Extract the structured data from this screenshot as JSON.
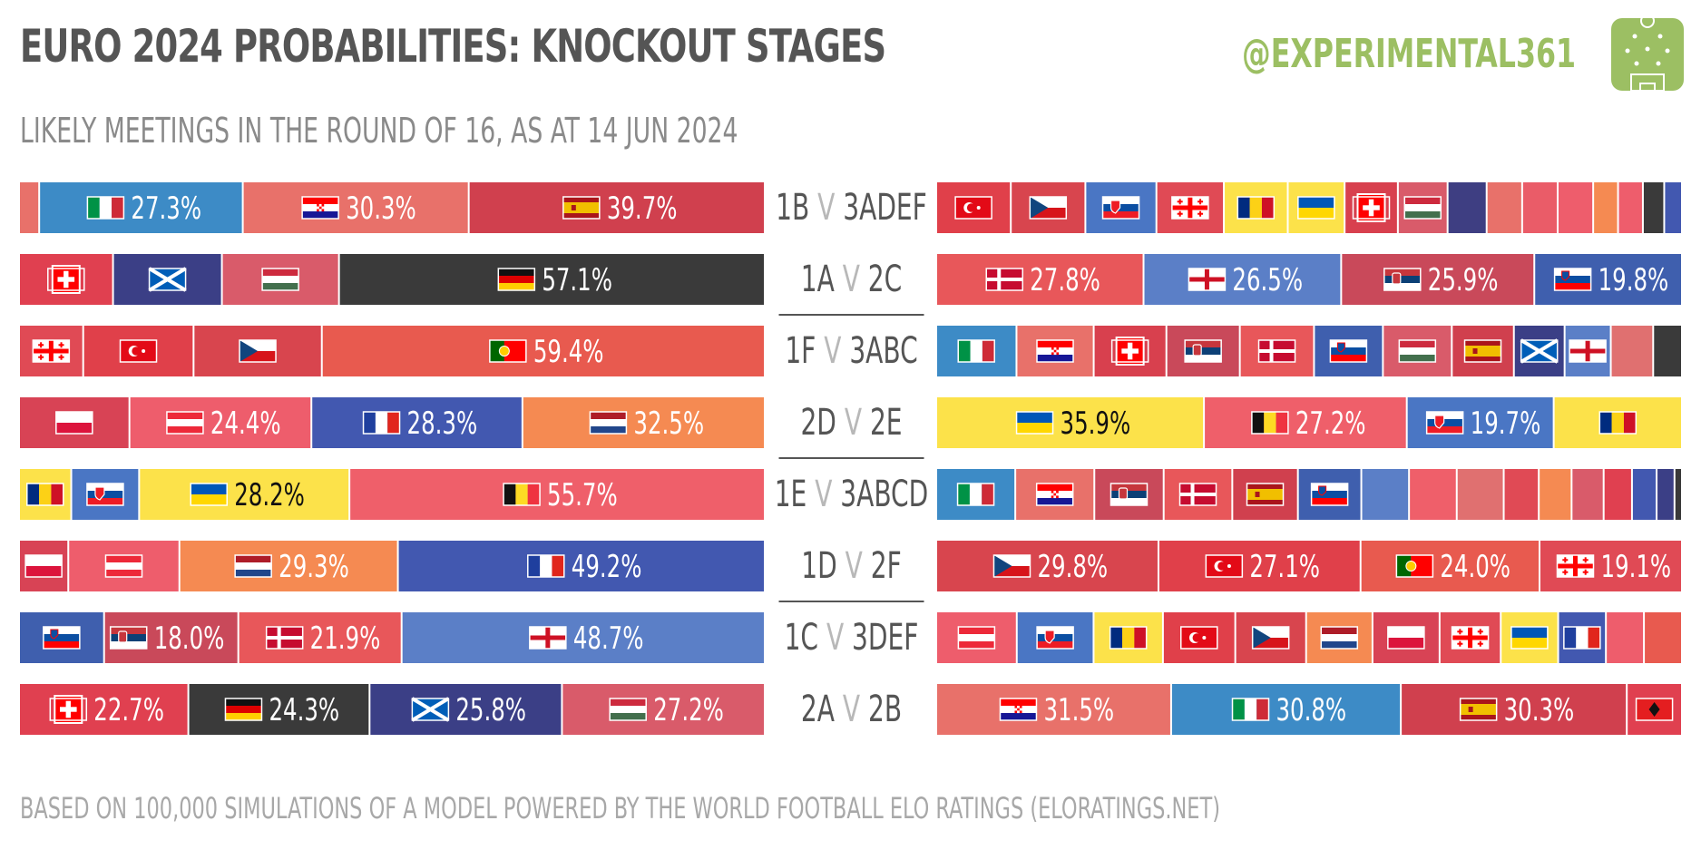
{
  "title": "EURO 2024 PROBABILITIES: KNOCKOUT STAGES",
  "subtitle": "LIKELY MEETINGS IN THE ROUND OF 16, AS AT 14 JUN 2024",
  "brand": "@EXPERIMENTAL361",
  "footer": "BASED ON 100,000 SIMULATIONS OF A MODEL POWERED BY THE WORLD FOOTBALL ELO RATINGS  (ELORATINGS.NET)",
  "colors": {
    "title": "#555555",
    "subtitle": "#8a8a8a",
    "brand": "#9cbf63",
    "versus": "#b8b8b8",
    "match_label": "#555555",
    "footer": "#a8a8a8"
  },
  "chart_data": {
    "type": "stacked-bar",
    "title": "EURO 2024 PROBABILITIES: KNOCKOUT STAGES",
    "unit": "% probability of team occupying that slot",
    "rows": [
      {
        "match": {
          "a": "1B",
          "v": "V",
          "b": "3ADEF"
        },
        "left": [
          {
            "team": "Other",
            "value": 2.7,
            "color": "#e8716a"
          },
          {
            "team": "Italy",
            "value": 27.3,
            "color": "#3d8bc6",
            "label": "27.3%"
          },
          {
            "team": "Croatia",
            "value": 30.3,
            "color": "#e8716a",
            "label": "30.3%"
          },
          {
            "team": "Spain",
            "value": 39.7,
            "color": "#d0404e",
            "label": "39.7%"
          }
        ],
        "right": [
          {
            "team": "Türkiye",
            "value": 10.5,
            "color": "#e0404a"
          },
          {
            "team": "Czechia",
            "value": 10.5,
            "color": "#d8454e"
          },
          {
            "team": "Slovakia",
            "value": 10.0,
            "color": "#4a76c4"
          },
          {
            "team": "Georgia",
            "value": 9.5,
            "color": "#e04a55"
          },
          {
            "team": "Romania",
            "value": 9.0,
            "color": "#fce24a"
          },
          {
            "team": "Ukraine",
            "value": 8.0,
            "color": "#fce24a"
          },
          {
            "team": "Switzerland",
            "value": 7.5,
            "color": "#d8404e"
          },
          {
            "team": "Hungary",
            "value": 7.0,
            "color": "#d95b6a"
          },
          {
            "team": "Other",
            "value": 5.5,
            "color": "#3e3e82"
          },
          {
            "team": "Other",
            "value": 5.0,
            "color": "#e8716a"
          },
          {
            "team": "Other",
            "value": 5.0,
            "color": "#ea5c68"
          },
          {
            "team": "Other",
            "value": 5.0,
            "color": "#ee5d6c"
          },
          {
            "team": "Other",
            "value": 3.5,
            "color": "#f58a52"
          },
          {
            "team": "Other",
            "value": 3.5,
            "color": "#ee5d6c"
          },
          {
            "team": "Other",
            "value": 3.0,
            "color": "#3a3a3a"
          },
          {
            "team": "Other",
            "value": 2.5,
            "color": "#4258b0"
          }
        ]
      },
      {
        "match": {
          "a": "1A",
          "v": "V",
          "b": "2C"
        },
        "left": [
          {
            "team": "Switzerland",
            "value": 12.6,
            "color": "#e04050"
          },
          {
            "team": "Scotland",
            "value": 14.6,
            "color": "#3b3f86"
          },
          {
            "team": "Hungary",
            "value": 15.7,
            "color": "#d95b6a"
          },
          {
            "team": "Germany",
            "value": 57.1,
            "color": "#3a3a3a",
            "label": "57.1%"
          }
        ],
        "right": [
          {
            "team": "Denmark",
            "value": 27.8,
            "color": "#e8575a",
            "label": "27.8%"
          },
          {
            "team": "England",
            "value": 26.5,
            "color": "#5b7fc7",
            "label": "26.5%"
          },
          {
            "team": "Serbia",
            "value": 25.9,
            "color": "#c9495a",
            "label": "25.9%"
          },
          {
            "team": "Slovenia",
            "value": 19.8,
            "color": "#3f5fae",
            "label": "19.8%"
          }
        ]
      },
      {
        "match": {
          "a": "1F",
          "v": "V",
          "b": "3ABC"
        },
        "left": [
          {
            "team": "Georgia",
            "value": 8.6,
            "color": "#e04a55"
          },
          {
            "team": "Türkiye",
            "value": 14.8,
            "color": "#e0404a"
          },
          {
            "team": "Czechia",
            "value": 17.2,
            "color": "#d8454e"
          },
          {
            "team": "Portugal",
            "value": 59.4,
            "color": "#e85a4f",
            "label": "59.4%"
          }
        ],
        "right": [
          {
            "team": "Italy",
            "value": 10.6,
            "color": "#3d8bc6"
          },
          {
            "team": "Croatia",
            "value": 10.2,
            "color": "#e8716a"
          },
          {
            "team": "Switzerland",
            "value": 9.6,
            "color": "#d8404e"
          },
          {
            "team": "Serbia",
            "value": 9.7,
            "color": "#c9495a"
          },
          {
            "team": "Denmark",
            "value": 9.8,
            "color": "#e8575a"
          },
          {
            "team": "Slovenia",
            "value": 9.1,
            "color": "#3f5fae"
          },
          {
            "team": "Hungary",
            "value": 9.1,
            "color": "#d95b6a"
          },
          {
            "team": "Spain",
            "value": 8.2,
            "color": "#d0404e"
          },
          {
            "team": "Scotland",
            "value": 6.7,
            "color": "#3b3f86"
          },
          {
            "team": "England",
            "value": 6.1,
            "color": "#5b7fc7"
          },
          {
            "team": "Other",
            "value": 5.6,
            "color": "#e07070"
          },
          {
            "team": "Other",
            "value": 3.8,
            "color": "#3a3a3a"
          }
        ]
      },
      {
        "match": {
          "a": "2D",
          "v": "V",
          "b": "2E"
        },
        "left": [
          {
            "team": "Poland",
            "value": 14.8,
            "color": "#d84355"
          },
          {
            "team": "Austria",
            "value": 24.4,
            "color": "#ee5d6c",
            "label": "24.4%"
          },
          {
            "team": "France",
            "value": 28.3,
            "color": "#4258b0",
            "label": "28.3%"
          },
          {
            "team": "Netherlands",
            "value": 32.5,
            "color": "#f58a52",
            "label": "32.5%"
          }
        ],
        "right": [
          {
            "team": "Ukraine",
            "value": 35.9,
            "color": "#fce24a",
            "label": "35.9%"
          },
          {
            "team": "Belgium",
            "value": 27.2,
            "color": "#ef5f6a",
            "label": "27.2%"
          },
          {
            "team": "Slovakia",
            "value": 19.7,
            "color": "#4a76c4",
            "label": "19.7%"
          },
          {
            "team": "Romania",
            "value": 17.2,
            "color": "#fce24a"
          }
        ]
      },
      {
        "match": {
          "a": "1E",
          "v": "V",
          "b": "3ABCD"
        },
        "left": [
          {
            "team": "Romania",
            "value": 7.0,
            "color": "#fce24a"
          },
          {
            "team": "Slovakia",
            "value": 9.1,
            "color": "#4a76c4"
          },
          {
            "team": "Ukraine",
            "value": 28.2,
            "color": "#fce24a",
            "label": "28.2%"
          },
          {
            "team": "Belgium",
            "value": 55.7,
            "color": "#ef5f6a",
            "label": "55.7%"
          }
        ],
        "right": [
          {
            "team": "Italy",
            "value": 10.6,
            "color": "#3d8bc6"
          },
          {
            "team": "Croatia",
            "value": 10.6,
            "color": "#e8716a"
          },
          {
            "team": "Serbia",
            "value": 9.3,
            "color": "#c9495a"
          },
          {
            "team": "Denmark",
            "value": 9.2,
            "color": "#e8575a"
          },
          {
            "team": "Spain",
            "value": 8.8,
            "color": "#d0404e"
          },
          {
            "team": "Slovenia",
            "value": 8.5,
            "color": "#3f5fae"
          },
          {
            "team": "Other",
            "value": 6.4,
            "color": "#5b7fc7"
          },
          {
            "team": "Other",
            "value": 6.4,
            "color": "#ef5f6a"
          },
          {
            "team": "Other",
            "value": 6.3,
            "color": "#e07070"
          },
          {
            "team": "Other",
            "value": 4.7,
            "color": "#e04a55"
          },
          {
            "team": "Other",
            "value": 4.4,
            "color": "#f58a52"
          },
          {
            "team": "Other",
            "value": 4.3,
            "color": "#d95b6a"
          },
          {
            "team": "Other",
            "value": 3.8,
            "color": "#e04050"
          },
          {
            "team": "Other",
            "value": 3.3,
            "color": "#4258b0"
          },
          {
            "team": "Other",
            "value": 2.4,
            "color": "#3b3f86"
          },
          {
            "team": "Other",
            "value": 1.0,
            "color": "#3a3a3a"
          }
        ]
      },
      {
        "match": {
          "a": "1D",
          "v": "V",
          "b": "2F"
        },
        "left": [
          {
            "team": "Poland",
            "value": 6.6,
            "color": "#d84355"
          },
          {
            "team": "Austria",
            "value": 14.9,
            "color": "#ee5d6c"
          },
          {
            "team": "Netherlands",
            "value": 29.3,
            "color": "#f58a52",
            "label": "29.3%"
          },
          {
            "team": "France",
            "value": 49.2,
            "color": "#4258b0",
            "label": "49.2%"
          }
        ],
        "right": [
          {
            "team": "Czechia",
            "value": 29.8,
            "color": "#d8454e",
            "label": "29.8%"
          },
          {
            "team": "Türkiye",
            "value": 27.1,
            "color": "#e0404a",
            "label": "27.1%"
          },
          {
            "team": "Portugal",
            "value": 24.0,
            "color": "#e85a4f",
            "label": "24.0%"
          },
          {
            "team": "Georgia",
            "value": 19.1,
            "color": "#e04a55",
            "label": "19.1%"
          }
        ]
      },
      {
        "match": {
          "a": "1C",
          "v": "V",
          "b": "3DEF"
        },
        "left": [
          {
            "team": "Slovenia",
            "value": 11.4,
            "color": "#3f5fae"
          },
          {
            "team": "Serbia",
            "value": 18.0,
            "color": "#c9495a",
            "label": "18.0%"
          },
          {
            "team": "Denmark",
            "value": 21.9,
            "color": "#e8575a",
            "label": "21.9%"
          },
          {
            "team": "England",
            "value": 48.7,
            "color": "#5b7fc7",
            "label": "48.7%"
          }
        ],
        "right": [
          {
            "team": "Austria",
            "value": 10.8,
            "color": "#ee5d6c"
          },
          {
            "team": "Slovakia",
            "value": 10.3,
            "color": "#4a76c4"
          },
          {
            "team": "Romania",
            "value": 9.3,
            "color": "#fce24a"
          },
          {
            "team": "Türkiye",
            "value": 9.7,
            "color": "#e0404a"
          },
          {
            "team": "Czechia",
            "value": 9.5,
            "color": "#d8454e"
          },
          {
            "team": "Netherlands",
            "value": 8.9,
            "color": "#f58a52"
          },
          {
            "team": "Poland",
            "value": 9.0,
            "color": "#d84355"
          },
          {
            "team": "Georgia",
            "value": 8.2,
            "color": "#e04a55"
          },
          {
            "team": "Ukraine",
            "value": 7.7,
            "color": "#fce24a"
          },
          {
            "team": "France",
            "value": 6.4,
            "color": "#4258b0"
          },
          {
            "team": "Other",
            "value": 5.1,
            "color": "#ee5d6c"
          },
          {
            "team": "Other",
            "value": 5.1,
            "color": "#e85a4f"
          }
        ]
      },
      {
        "match": {
          "a": "2A",
          "v": "V",
          "b": "2B"
        },
        "left": [
          {
            "team": "Switzerland",
            "value": 22.7,
            "color": "#e04050",
            "label": "22.7%"
          },
          {
            "team": "Germany",
            "value": 24.3,
            "color": "#3a3a3a",
            "label": "24.3%"
          },
          {
            "team": "Scotland",
            "value": 25.8,
            "color": "#3b3f86",
            "label": "25.8%"
          },
          {
            "team": "Hungary",
            "value": 27.2,
            "color": "#d95b6a",
            "label": "27.2%"
          }
        ],
        "right": [
          {
            "team": "Croatia",
            "value": 31.5,
            "color": "#e8716a",
            "label": "31.5%"
          },
          {
            "team": "Italy",
            "value": 30.8,
            "color": "#3d8bc6",
            "label": "30.8%"
          },
          {
            "team": "Spain",
            "value": 30.3,
            "color": "#d0404e",
            "label": "30.3%"
          },
          {
            "team": "Albania",
            "value": 7.4,
            "color": "#e04050"
          }
        ]
      }
    ]
  }
}
